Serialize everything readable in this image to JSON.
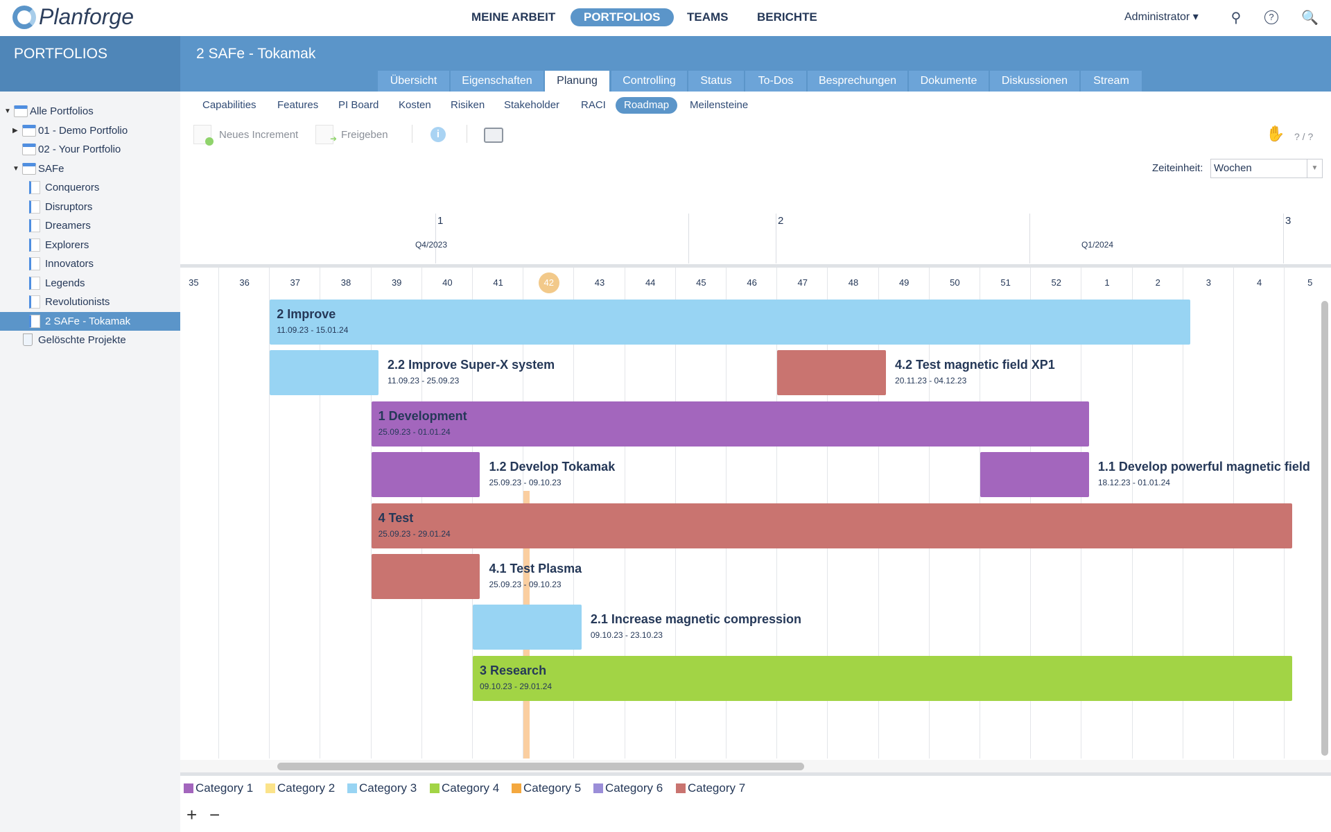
{
  "app": {
    "logo": "Planforge"
  },
  "topnav": [
    {
      "label": "MEINE ARBEIT",
      "active": false
    },
    {
      "label": "PORTFOLIOS",
      "active": true
    },
    {
      "label": "TEAMS",
      "active": false
    },
    {
      "label": "BERICHTE",
      "active": false
    }
  ],
  "user": {
    "label": "Administrator ▾"
  },
  "icons": {
    "search": "search-icon",
    "help": "help-icon",
    "tools": "wrench-icon"
  },
  "sidebar": {
    "title": "PORTFOLIOS",
    "items": [
      {
        "label": "Alle Portfolios",
        "level": 0,
        "type": "folder",
        "expander": "▼"
      },
      {
        "label": "01 - Demo Portfolio",
        "level": 1,
        "type": "folder",
        "expander": "▶"
      },
      {
        "label": "02 - Your Portfolio",
        "level": 1,
        "type": "folder",
        "expander": ""
      },
      {
        "label": "SAFe",
        "level": 1,
        "type": "folder",
        "expander": "▼"
      },
      {
        "label": "Conquerors",
        "level": 2,
        "type": "project"
      },
      {
        "label": "Disruptors",
        "level": 2,
        "type": "project"
      },
      {
        "label": "Dreamers",
        "level": 2,
        "type": "project"
      },
      {
        "label": "Explorers",
        "level": 2,
        "type": "project"
      },
      {
        "label": "Innovators",
        "level": 2,
        "type": "project"
      },
      {
        "label": "Legends",
        "level": 2,
        "type": "project"
      },
      {
        "label": "Revolutionists",
        "level": 2,
        "type": "project"
      },
      {
        "label": "2 SAFe - Tokamak",
        "level": 2,
        "type": "project",
        "selected": true
      },
      {
        "label": "Gelöschte Projekte",
        "level": 1,
        "type": "trash"
      }
    ]
  },
  "page": {
    "title": "2 SAFe - Tokamak"
  },
  "tabs": [
    {
      "label": "Übersicht"
    },
    {
      "label": "Eigenschaften"
    },
    {
      "label": "Planung",
      "active": true
    },
    {
      "label": "Controlling"
    },
    {
      "label": "Status"
    },
    {
      "label": "To-Dos"
    },
    {
      "label": "Besprechungen"
    },
    {
      "label": "Dokumente"
    },
    {
      "label": "Diskussionen"
    },
    {
      "label": "Stream"
    }
  ],
  "subnav": [
    {
      "label": "Capabilities"
    },
    {
      "label": "Features"
    },
    {
      "label": "PI Board"
    },
    {
      "label": "Kosten"
    },
    {
      "label": "Risiken"
    },
    {
      "label": "Stakeholder"
    },
    {
      "label": "RACI"
    },
    {
      "label": "Roadmap",
      "active": true
    },
    {
      "label": "Meilensteine"
    }
  ],
  "toolbar": {
    "new_increment": "Neues Increment",
    "release": "Freigeben",
    "counter": "? / ?"
  },
  "timeunit": {
    "label": "Zeiteinheit:",
    "value": "Wochen"
  },
  "timeline": {
    "increments": [
      "1",
      "2",
      "3"
    ],
    "quarters": [
      "Q4/2023",
      "Q1/2024"
    ],
    "weeks": [
      "35",
      "36",
      "37",
      "38",
      "39",
      "40",
      "41",
      "42",
      "43",
      "44",
      "45",
      "46",
      "47",
      "48",
      "49",
      "50",
      "51",
      "52",
      "1",
      "2",
      "3",
      "4",
      "5"
    ],
    "current_week": "42",
    "today": "16.10.23",
    "colors": {
      "Category 1": "#a366bd",
      "Category 2": "#fbe38a",
      "Category 3": "#98d4f3",
      "Category 4": "#a2d445",
      "Category 5": "#f4a83f",
      "Category 6": "#9b8ed8",
      "Category 7": "#c97470",
      "today": "#f9c996"
    },
    "rows": [
      [
        {
          "title": "2 Improve",
          "dates": "11.09.23 - 15.01.24",
          "start": "2023-09-11",
          "end": "2024-01-15",
          "category": "Category 3"
        }
      ],
      [
        {
          "title": "2.2 Improve Super-X system",
          "dates": "11.09.23 - 25.09.23",
          "start": "2023-09-11",
          "end": "2023-09-25",
          "category": "Category 3"
        },
        {
          "title": "4.2 Test magnetic field XP1",
          "dates": "20.11.23 - 04.12.23",
          "start": "2023-11-20",
          "end": "2023-12-04",
          "category": "Category 7"
        }
      ],
      [
        {
          "title": "1 Development",
          "dates": "25.09.23 - 01.01.24",
          "start": "2023-09-25",
          "end": "2024-01-01",
          "category": "Category 1"
        }
      ],
      [
        {
          "title": "1.2 Develop Tokamak",
          "dates": "25.09.23 - 09.10.23",
          "start": "2023-09-25",
          "end": "2023-10-09",
          "category": "Category 1"
        },
        {
          "title": "1.1 Develop powerful magnetic field",
          "dates": "18.12.23 - 01.01.24",
          "start": "2023-12-18",
          "end": "2024-01-01",
          "category": "Category 1"
        }
      ],
      [
        {
          "title": "4 Test",
          "dates": "25.09.23 - 29.01.24",
          "start": "2023-09-25",
          "end": "2024-01-29",
          "category": "Category 7"
        }
      ],
      [
        {
          "title": "4.1 Test Plasma",
          "dates": "25.09.23 - 09.10.23",
          "start": "2023-09-25",
          "end": "2023-10-09",
          "category": "Category 7"
        }
      ],
      [
        {
          "title": "2.1 Increase magnetic compression",
          "dates": "09.10.23 - 23.10.23",
          "start": "2023-10-09",
          "end": "2023-10-23",
          "category": "Category 3"
        }
      ],
      [
        {
          "title": "3 Research",
          "dates": "09.10.23 - 29.01.24",
          "start": "2023-10-09",
          "end": "2024-01-29",
          "category": "Category 4"
        }
      ]
    ]
  },
  "legend": [
    "Category 1",
    "Category 2",
    "Category 3",
    "Category 4",
    "Category 5",
    "Category 6",
    "Category 7"
  ],
  "zoom": {
    "in": "+",
    "out": "−"
  }
}
